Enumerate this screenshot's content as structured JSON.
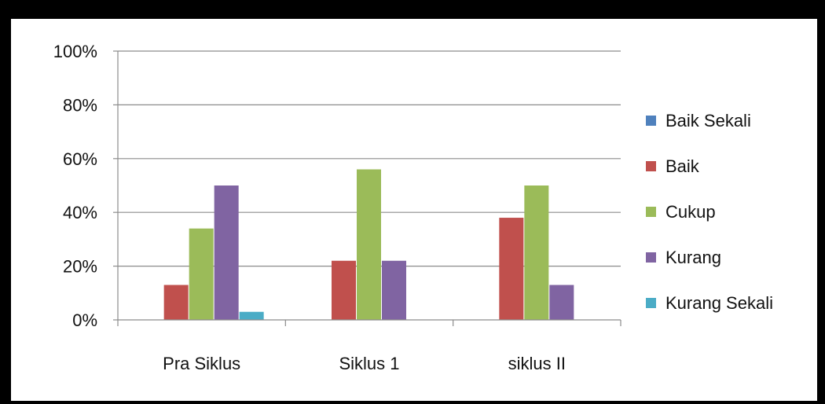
{
  "chart_data": {
    "type": "bar",
    "categories": [
      "Pra Siklus",
      "Siklus 1",
      "siklus II"
    ],
    "y_ticks": [
      "0%",
      "20%",
      "40%",
      "60%",
      "80%",
      "100%"
    ],
    "ylim": [
      0,
      100
    ],
    "grid": true,
    "legend_position": "right",
    "series": [
      {
        "name": "Baik Sekali",
        "color": "#4f81bd",
        "values": [
          0,
          0,
          0
        ]
      },
      {
        "name": "Baik",
        "color": "#c0504d",
        "values": [
          13,
          22,
          38
        ]
      },
      {
        "name": "Cukup",
        "color": "#9bbb59",
        "values": [
          34,
          56,
          50
        ]
      },
      {
        "name": "Kurang",
        "color": "#8064a2",
        "values": [
          50,
          22,
          13
        ]
      },
      {
        "name": "Kurang Sekali",
        "color": "#4bacc6",
        "values": [
          3,
          0,
          0
        ]
      }
    ]
  }
}
